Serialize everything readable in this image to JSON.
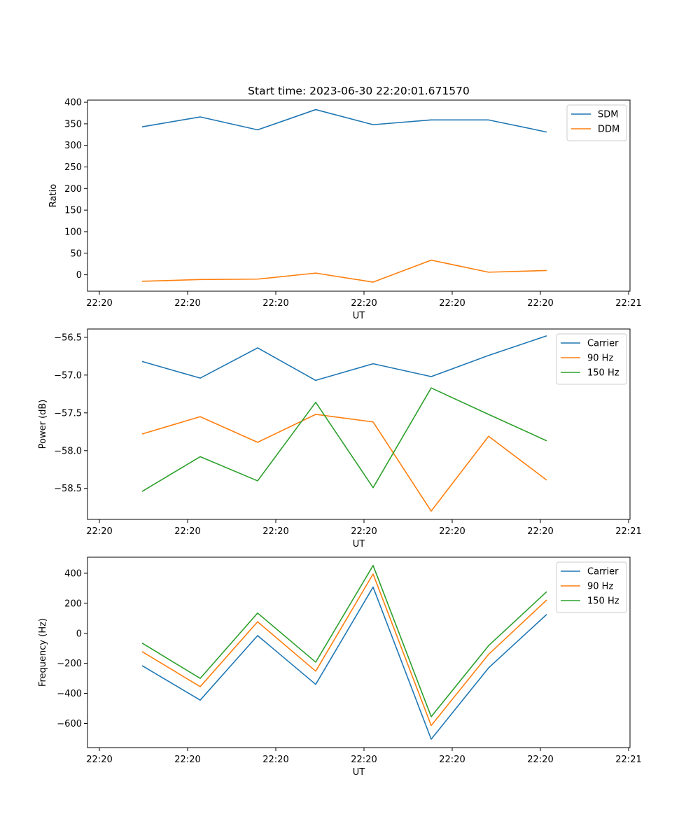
{
  "chart_data": [
    {
      "type": "line",
      "title": "Start time: 2023-06-30 22:20:01.671570",
      "xlabel": "UT",
      "ylabel": "Ratio",
      "x_tick_labels": [
        "22:20",
        "22:20",
        "22:20",
        "22:20",
        "22:20",
        "22:20",
        "22:21"
      ],
      "ylim": [
        -38,
        405
      ],
      "yticks": [
        0,
        50,
        100,
        150,
        200,
        250,
        300,
        350,
        400
      ],
      "grid": false,
      "legend": "top-right",
      "series": [
        {
          "name": "SDM",
          "color": "#1f77b4",
          "values": [
            343,
            366,
            336,
            383,
            348,
            359,
            359,
            331
          ]
        },
        {
          "name": "DDM",
          "color": "#ff7f0e",
          "values": [
            -15,
            -11,
            -10,
            4,
            -17,
            34,
            6,
            10
          ]
        }
      ]
    },
    {
      "type": "line",
      "title": "",
      "xlabel": "UT",
      "ylabel": "Power (dB)",
      "x_tick_labels": [
        "22:20",
        "22:20",
        "22:20",
        "22:20",
        "22:20",
        "22:20",
        "22:21"
      ],
      "ylim": [
        -58.91,
        -56.39
      ],
      "yticks": [
        -58.5,
        -58.0,
        -57.5,
        -57.0,
        -56.5
      ],
      "ytick_labels": [
        "−58.5",
        "−58.0",
        "−57.5",
        "−57.0",
        "−56.5"
      ],
      "grid": false,
      "legend": "top-right",
      "series": [
        {
          "name": "Carrier",
          "color": "#1f77b4",
          "values": [
            -56.82,
            -57.04,
            -56.64,
            -57.07,
            -56.85,
            -57.02,
            -56.74,
            -56.48
          ]
        },
        {
          "name": "90 Hz",
          "color": "#ff7f0e",
          "values": [
            -57.78,
            -57.55,
            -57.89,
            -57.52,
            -57.62,
            -58.8,
            -57.81,
            -58.39
          ]
        },
        {
          "name": "150 Hz",
          "color": "#2ca02c",
          "values": [
            -58.54,
            -58.08,
            -58.4,
            -57.36,
            -58.49,
            -57.17,
            -57.52,
            -57.87
          ]
        }
      ]
    },
    {
      "type": "line",
      "title": "",
      "xlabel": "UT",
      "ylabel": "Frequency (Hz)",
      "x_tick_labels": [
        "22:20",
        "22:20",
        "22:20",
        "22:20",
        "22:20",
        "22:20",
        "22:21"
      ],
      "ylim": [
        -761,
        507
      ],
      "yticks": [
        -600,
        -400,
        -200,
        0,
        200,
        400
      ],
      "ytick_labels": [
        "−600",
        "−400",
        "−200",
        "0",
        "200",
        "400"
      ],
      "grid": false,
      "legend": "top-right",
      "series": [
        {
          "name": "Carrier",
          "color": "#1f77b4",
          "values": [
            -215,
            -445,
            -15,
            -340,
            308,
            -705,
            -230,
            126
          ]
        },
        {
          "name": "90 Hz",
          "color": "#ff7f0e",
          "values": [
            -122,
            -355,
            77,
            -252,
            395,
            -614,
            -140,
            222
          ]
        },
        {
          "name": "150 Hz",
          "color": "#2ca02c",
          "values": [
            -65,
            -300,
            135,
            -192,
            452,
            -555,
            -82,
            277
          ]
        }
      ]
    }
  ]
}
